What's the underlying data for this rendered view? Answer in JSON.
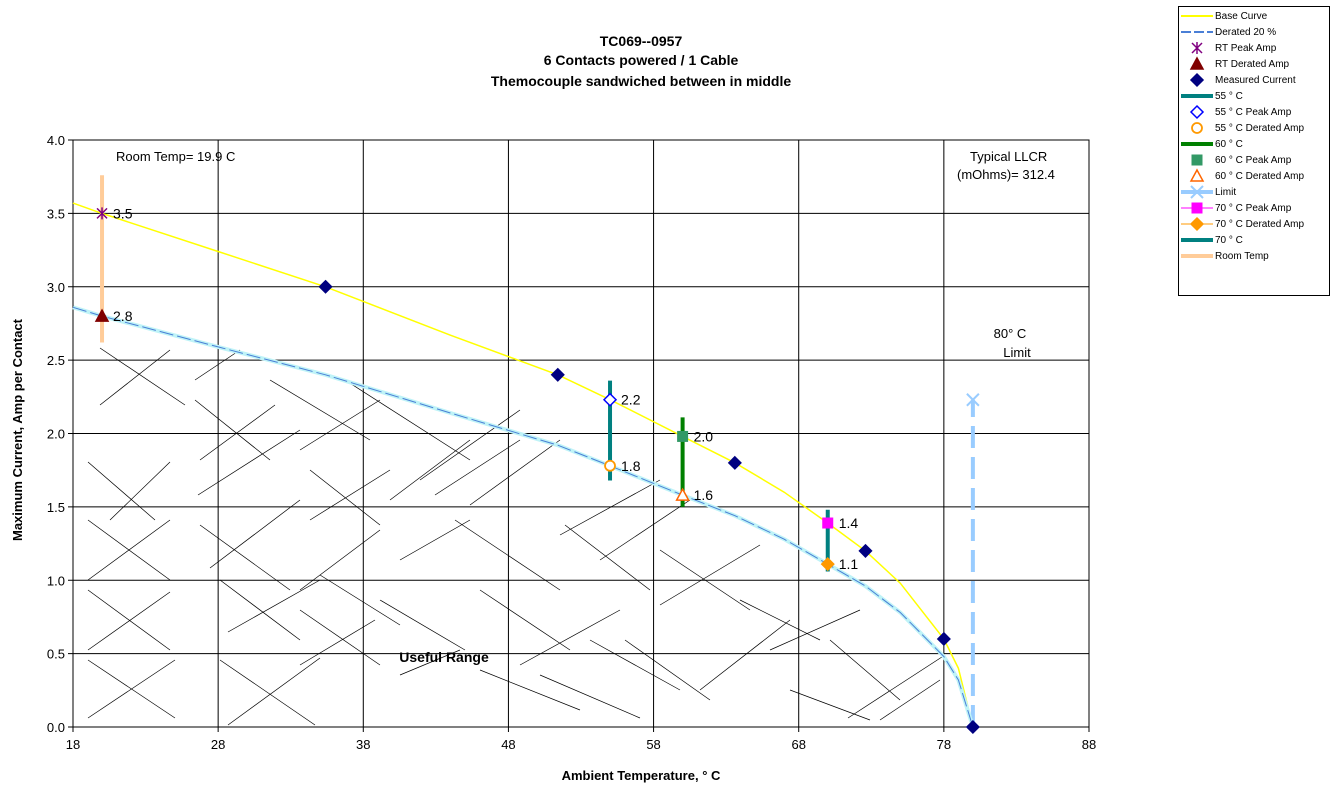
{
  "chart_data": {
    "type": "line",
    "title_lines": [
      "TC069--0957",
      "6 Contacts powered / 1 Cable",
      "Themocouple sandwiched between in middle"
    ],
    "xlabel": "Ambient Temperature,  ° C",
    "ylabel": "Maximum Current, Amp per Contact",
    "xlim": [
      18,
      88
    ],
    "ylim": [
      0,
      4
    ],
    "x_ticks": [
      "18",
      "28",
      "38",
      "48",
      "58",
      "68",
      "78",
      "88"
    ],
    "y_ticks": [
      "0.0",
      "0.5",
      "1.0",
      "1.5",
      "2.0",
      "2.5",
      "3.0",
      "3.5",
      "4.0"
    ],
    "grid": true,
    "legend_position": "top-right",
    "annotations": {
      "room_temp": "Room Temp= 19.9 C",
      "llcr_line1": "Typical LLCR",
      "llcr_line2": "(mOhms)= 312.4",
      "limit_line1": "80° C",
      "limit_line2": "Limit",
      "useful_range": "Useful Range"
    },
    "series": [
      {
        "name": "Base Curve",
        "kind": "line",
        "color": "#ffff00",
        "points": [
          [
            18,
            3.57
          ],
          [
            20,
            3.5
          ],
          [
            28,
            3.24
          ],
          [
            35.4,
            3.0
          ],
          [
            44,
            2.67
          ],
          [
            51.4,
            2.4
          ],
          [
            55,
            2.23
          ],
          [
            60,
            1.98
          ],
          [
            63.6,
            1.8
          ],
          [
            67,
            1.6
          ],
          [
            70,
            1.39
          ],
          [
            72.6,
            1.2
          ],
          [
            75,
            0.98
          ],
          [
            78,
            0.6
          ],
          [
            79,
            0.4
          ],
          [
            80,
            0.0
          ]
        ]
      },
      {
        "name": "Derated 20 %",
        "kind": "line",
        "color": "#4a7fd6",
        "points": [
          [
            18,
            2.86
          ],
          [
            20,
            2.8
          ],
          [
            28,
            2.59
          ],
          [
            35.4,
            2.4
          ],
          [
            44,
            2.14
          ],
          [
            51.4,
            1.92
          ],
          [
            55,
            1.78
          ],
          [
            60,
            1.58
          ],
          [
            63.6,
            1.44
          ],
          [
            67,
            1.28
          ],
          [
            70,
            1.11
          ],
          [
            72.6,
            0.96
          ],
          [
            75,
            0.78
          ],
          [
            78,
            0.48
          ],
          [
            79,
            0.32
          ],
          [
            80,
            0.0
          ]
        ]
      },
      {
        "name": "RT Peak Amp",
        "kind": "marker",
        "marker": "asterisk",
        "color": "#800080",
        "points": [
          [
            20,
            3.5
          ]
        ]
      },
      {
        "name": "RT Derated Amp",
        "kind": "marker",
        "marker": "triangle",
        "color": "#800000",
        "points": [
          [
            20,
            2.8
          ]
        ]
      },
      {
        "name": "Measured Current",
        "kind": "marker",
        "marker": "diamond",
        "color": "#000080",
        "points": [
          [
            35.4,
            3.0
          ],
          [
            51.4,
            2.4
          ],
          [
            63.6,
            1.8
          ],
          [
            72.6,
            1.2
          ],
          [
            78,
            0.6
          ],
          [
            80,
            0.0
          ]
        ]
      },
      {
        "name": "55 ° C",
        "kind": "vline",
        "color": "#008080",
        "x": 55,
        "y_range": [
          1.68,
          2.36
        ]
      },
      {
        "name": "55  ° C Peak Amp",
        "kind": "marker",
        "marker": "diamond-open",
        "color": "#0000ff",
        "points": [
          [
            55,
            2.23
          ]
        ]
      },
      {
        "name": "55  ° C Derated Amp",
        "kind": "marker",
        "marker": "circle-open",
        "color": "#ff9900",
        "points": [
          [
            55,
            1.78
          ]
        ]
      },
      {
        "name": "60  ° C",
        "kind": "vline",
        "color": "#008000",
        "x": 60,
        "y_range": [
          1.5,
          2.11
        ]
      },
      {
        "name": "60  ° C Peak Amp",
        "kind": "marker",
        "marker": "square",
        "color": "#339966",
        "points": [
          [
            60,
            1.98
          ]
        ]
      },
      {
        "name": "60  ° C Derated Amp",
        "kind": "marker",
        "marker": "triangle-open",
        "color": "#ff6600",
        "points": [
          [
            60,
            1.58
          ]
        ]
      },
      {
        "name": "Limit",
        "kind": "vline-dashed",
        "color": "#99ccff",
        "x": 80,
        "y_range": [
          0,
          2.23
        ]
      },
      {
        "name": "70  ° C Peak Amp",
        "kind": "marker",
        "marker": "square",
        "color": "#ff00ff",
        "points": [
          [
            70,
            1.39
          ]
        ]
      },
      {
        "name": "70  ° C Derated Amp",
        "kind": "marker",
        "marker": "diamond",
        "color": "#ff9900",
        "points": [
          [
            70,
            1.11
          ]
        ]
      },
      {
        "name": "70  ° C",
        "kind": "vline",
        "color": "#008080",
        "x": 70,
        "y_range": [
          1.06,
          1.48
        ]
      },
      {
        "name": "Room Temp",
        "kind": "vline",
        "color": "#ffcc99",
        "x": 20,
        "y_range": [
          2.62,
          3.76
        ]
      }
    ],
    "data_labels": [
      {
        "x": 20,
        "y": 3.5,
        "text": "3.5"
      },
      {
        "x": 20,
        "y": 2.8,
        "text": "2.8"
      },
      {
        "x": 55,
        "y": 2.23,
        "text": "2.2"
      },
      {
        "x": 55,
        "y": 1.78,
        "text": "1.8"
      },
      {
        "x": 60,
        "y": 1.98,
        "text": "2.0"
      },
      {
        "x": 60,
        "y": 1.58,
        "text": "1.6"
      },
      {
        "x": 70,
        "y": 1.39,
        "text": "1.4"
      },
      {
        "x": 70,
        "y": 1.11,
        "text": "1.1"
      }
    ]
  }
}
